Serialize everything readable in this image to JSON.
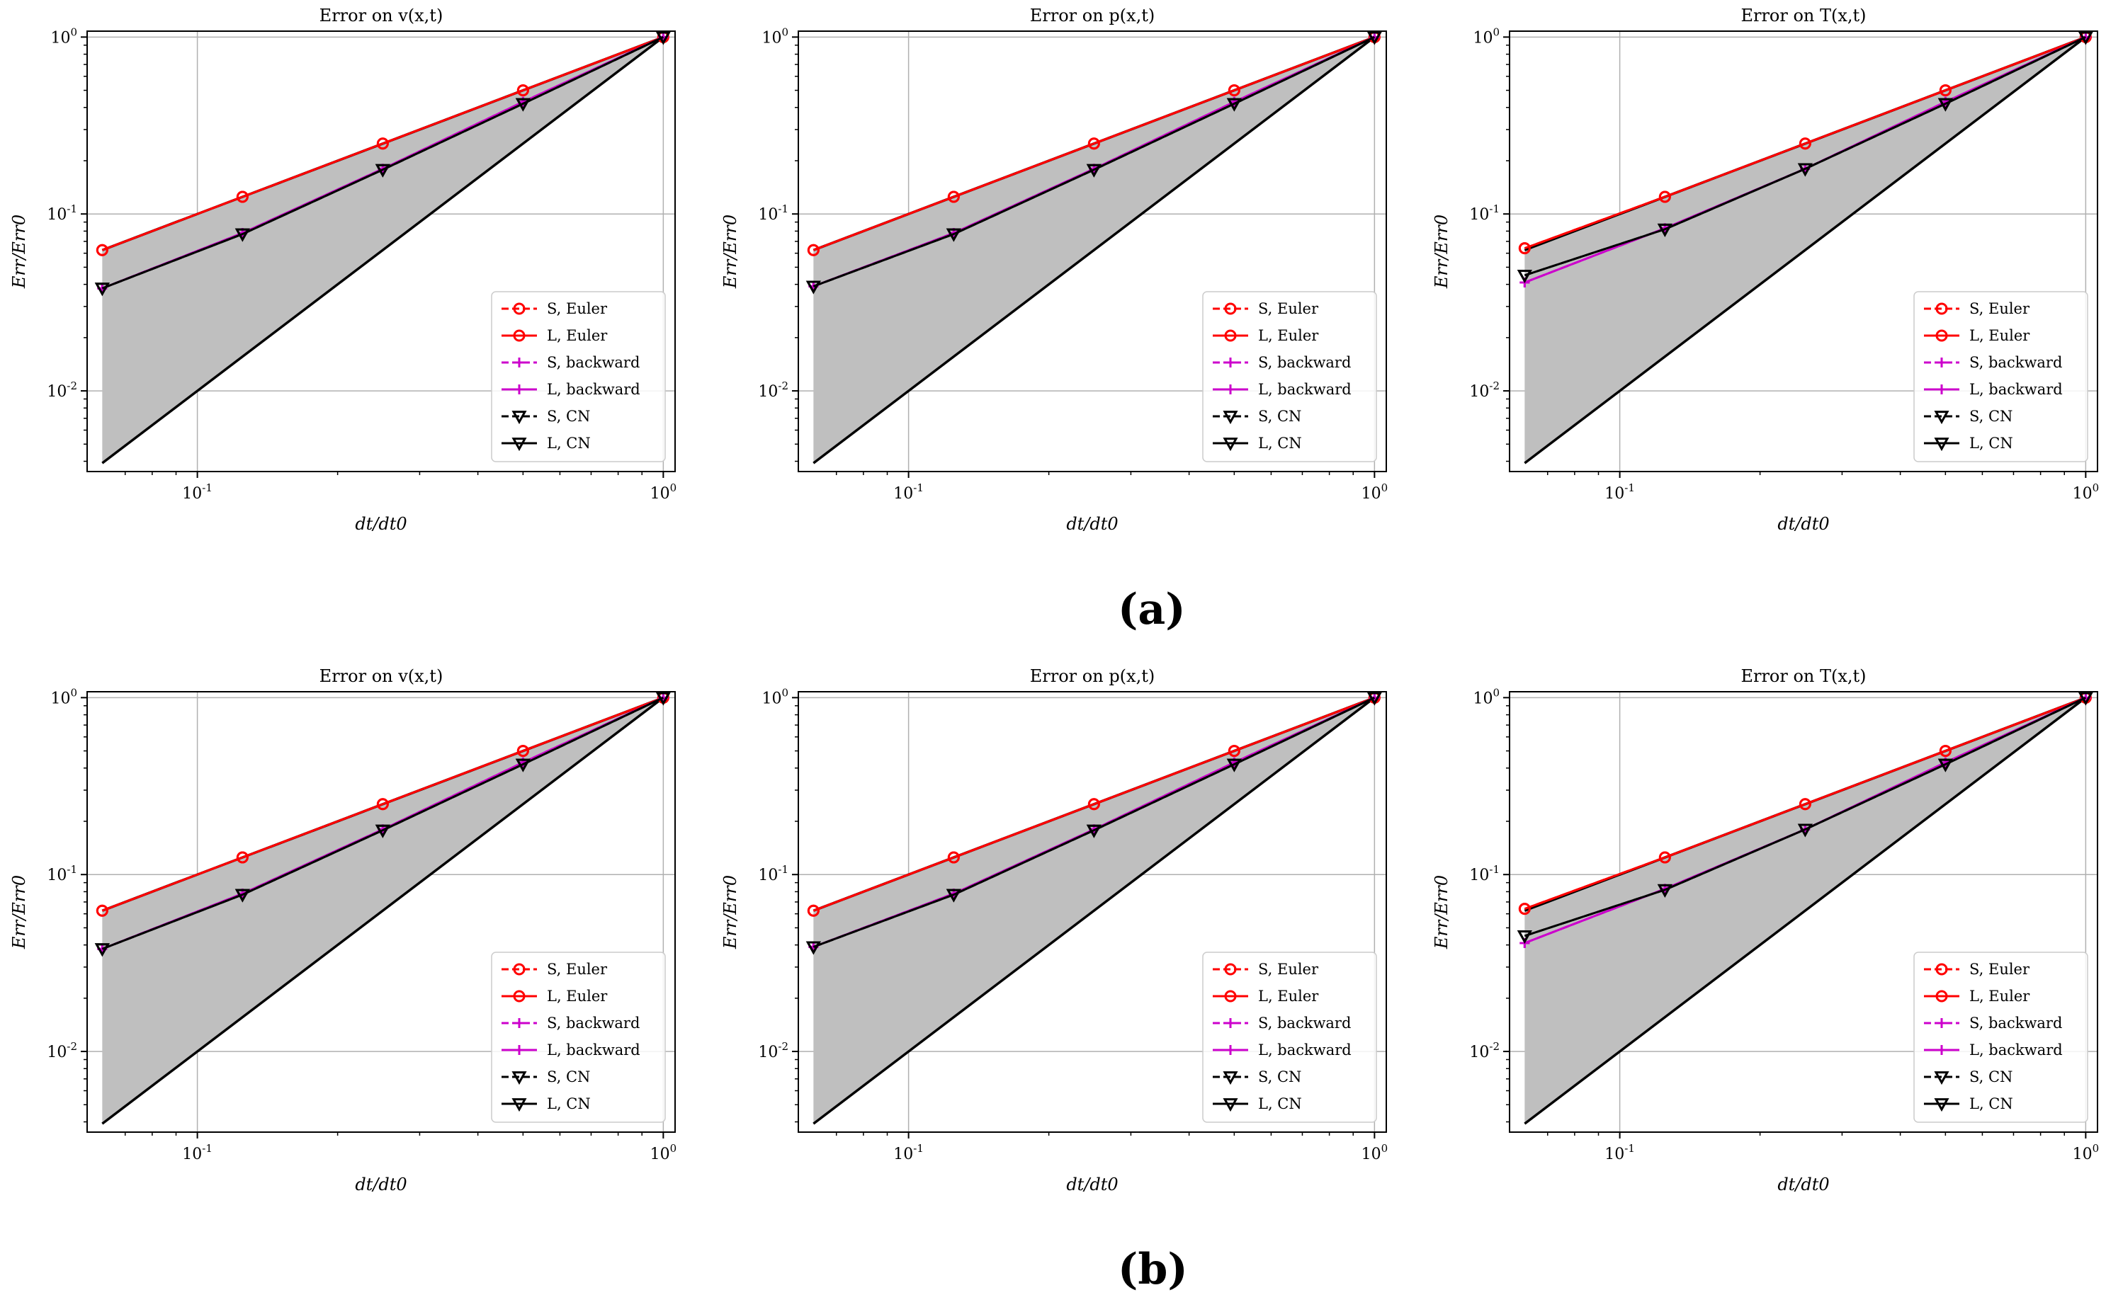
{
  "panel_labels": [
    "(a)",
    "(b)"
  ],
  "series_styles": {
    "S, Euler": {
      "color": "#ff0000",
      "dash": true,
      "marker": "circle"
    },
    "L, Euler": {
      "color": "#ff0000",
      "dash": false,
      "marker": "circle"
    },
    "S, backward": {
      "color": "#cc00cc",
      "dash": true,
      "marker": "plus"
    },
    "L, backward": {
      "color": "#cc00cc",
      "dash": false,
      "marker": "plus"
    },
    "S, CN": {
      "color": "#000000",
      "dash": true,
      "marker": "triangle-down"
    },
    "L, CN": {
      "color": "#000000",
      "dash": false,
      "marker": "triangle-down"
    }
  },
  "reference_band": {
    "fill": "#bfbfbf",
    "slopes": [
      1,
      2
    ]
  },
  "chart_data": [
    {
      "type": "line",
      "panel": "a",
      "title": "Error on v(x,t)",
      "xlabel": "dt/dt0",
      "ylabel": "Err/Err0",
      "xscale": "log",
      "yscale": "log",
      "xlim": [
        0.058,
        1.06
      ],
      "ylim": [
        0.0035,
        1.08
      ],
      "grid": true,
      "legend": "lower-right",
      "x": [
        0.0625,
        0.125,
        0.25,
        0.5,
        1.0
      ],
      "series": [
        {
          "name": "S, Euler",
          "values": [
            0.0625,
            0.125,
            0.25,
            0.5,
            1.0
          ]
        },
        {
          "name": "L, Euler",
          "values": [
            0.0625,
            0.125,
            0.25,
            0.5,
            1.0
          ]
        },
        {
          "name": "S, backward",
          "values": [
            0.038,
            0.078,
            0.18,
            0.43,
            1.0
          ]
        },
        {
          "name": "L, backward",
          "values": [
            0.038,
            0.078,
            0.18,
            0.43,
            1.0
          ]
        },
        {
          "name": "S, CN",
          "values": [
            0.038,
            0.077,
            0.178,
            0.42,
            1.0
          ]
        },
        {
          "name": "L, CN",
          "values": [
            0.038,
            0.077,
            0.178,
            0.42,
            1.0
          ]
        }
      ]
    },
    {
      "type": "line",
      "panel": "a",
      "title": "Error on p(x,t)",
      "xlabel": "dt/dt0",
      "ylabel": "Err/Err0",
      "xscale": "log",
      "yscale": "log",
      "xlim": [
        0.058,
        1.06
      ],
      "ylim": [
        0.0035,
        1.08
      ],
      "grid": true,
      "legend": "lower-right",
      "x": [
        0.0625,
        0.125,
        0.25,
        0.5,
        1.0
      ],
      "series": [
        {
          "name": "S, Euler",
          "values": [
            0.0625,
            0.125,
            0.25,
            0.5,
            1.0
          ]
        },
        {
          "name": "L, Euler",
          "values": [
            0.0625,
            0.125,
            0.25,
            0.5,
            1.0
          ]
        },
        {
          "name": "S, backward",
          "values": [
            0.039,
            0.078,
            0.18,
            0.43,
            1.0
          ]
        },
        {
          "name": "L, backward",
          "values": [
            0.039,
            0.078,
            0.18,
            0.43,
            1.0
          ]
        },
        {
          "name": "S, CN",
          "values": [
            0.039,
            0.077,
            0.178,
            0.42,
            1.0
          ]
        },
        {
          "name": "L, CN",
          "values": [
            0.039,
            0.077,
            0.178,
            0.42,
            1.0
          ]
        }
      ]
    },
    {
      "type": "line",
      "panel": "a",
      "title": "Error on T(x,t)",
      "xlabel": "dt/dt0",
      "ylabel": "Err/Err0",
      "xscale": "log",
      "yscale": "log",
      "xlim": [
        0.058,
        1.06
      ],
      "ylim": [
        0.0035,
        1.08
      ],
      "grid": true,
      "legend": "lower-right",
      "x": [
        0.0625,
        0.125,
        0.25,
        0.5,
        1.0
      ],
      "series": [
        {
          "name": "S, Euler",
          "values": [
            0.064,
            0.125,
            0.25,
            0.5,
            1.0
          ]
        },
        {
          "name": "L, Euler",
          "values": [
            0.064,
            0.125,
            0.25,
            0.5,
            1.0
          ]
        },
        {
          "name": "S, backward",
          "values": [
            0.041,
            0.083,
            0.18,
            0.43,
            1.0
          ]
        },
        {
          "name": "L, backward",
          "values": [
            0.041,
            0.083,
            0.18,
            0.43,
            1.0
          ]
        },
        {
          "name": "S, CN",
          "values": [
            0.045,
            0.082,
            0.18,
            0.42,
            1.0
          ]
        },
        {
          "name": "L, CN",
          "values": [
            0.045,
            0.082,
            0.18,
            0.42,
            1.0
          ]
        }
      ]
    },
    {
      "type": "line",
      "panel": "b",
      "title": "Error on v(x,t)",
      "xlabel": "dt/dt0",
      "ylabel": "Err/Err0",
      "xscale": "log",
      "yscale": "log",
      "xlim": [
        0.058,
        1.06
      ],
      "ylim": [
        0.0035,
        1.08
      ],
      "grid": true,
      "legend": "lower-right",
      "x": [
        0.0625,
        0.125,
        0.25,
        0.5,
        1.0
      ],
      "series": [
        {
          "name": "S, Euler",
          "values": [
            0.0625,
            0.125,
            0.25,
            0.5,
            1.0
          ]
        },
        {
          "name": "L, Euler",
          "values": [
            0.0625,
            0.125,
            0.25,
            0.5,
            1.0
          ]
        },
        {
          "name": "S, backward",
          "values": [
            0.038,
            0.078,
            0.18,
            0.43,
            1.0
          ]
        },
        {
          "name": "L, backward",
          "values": [
            0.038,
            0.078,
            0.18,
            0.43,
            1.0
          ]
        },
        {
          "name": "S, CN",
          "values": [
            0.038,
            0.077,
            0.178,
            0.42,
            1.0
          ]
        },
        {
          "name": "L, CN",
          "values": [
            0.038,
            0.077,
            0.178,
            0.42,
            1.0
          ]
        }
      ]
    },
    {
      "type": "line",
      "panel": "b",
      "title": "Error on p(x,t)",
      "xlabel": "dt/dt0",
      "ylabel": "Err/Err0",
      "xscale": "log",
      "yscale": "log",
      "xlim": [
        0.058,
        1.06
      ],
      "ylim": [
        0.0035,
        1.08
      ],
      "grid": true,
      "legend": "lower-right",
      "x": [
        0.0625,
        0.125,
        0.25,
        0.5,
        1.0
      ],
      "series": [
        {
          "name": "S, Euler",
          "values": [
            0.0625,
            0.125,
            0.25,
            0.5,
            1.0
          ]
        },
        {
          "name": "L, Euler",
          "values": [
            0.0625,
            0.125,
            0.25,
            0.5,
            1.0
          ]
        },
        {
          "name": "S, backward",
          "values": [
            0.039,
            0.078,
            0.18,
            0.43,
            1.0
          ]
        },
        {
          "name": "L, backward",
          "values": [
            0.039,
            0.078,
            0.18,
            0.43,
            1.0
          ]
        },
        {
          "name": "S, CN",
          "values": [
            0.039,
            0.077,
            0.178,
            0.42,
            1.0
          ]
        },
        {
          "name": "L, CN",
          "values": [
            0.039,
            0.077,
            0.178,
            0.42,
            1.0
          ]
        }
      ]
    },
    {
      "type": "line",
      "panel": "b",
      "title": "Error on T(x,t)",
      "xlabel": "dt/dt0",
      "ylabel": "Err/Err0",
      "xscale": "log",
      "yscale": "log",
      "xlim": [
        0.058,
        1.06
      ],
      "ylim": [
        0.0035,
        1.08
      ],
      "grid": true,
      "legend": "lower-right",
      "x": [
        0.0625,
        0.125,
        0.25,
        0.5,
        1.0
      ],
      "series": [
        {
          "name": "S, Euler",
          "values": [
            0.064,
            0.125,
            0.25,
            0.5,
            1.0
          ]
        },
        {
          "name": "L, Euler",
          "values": [
            0.064,
            0.125,
            0.25,
            0.5,
            1.0
          ]
        },
        {
          "name": "S, backward",
          "values": [
            0.041,
            0.083,
            0.18,
            0.43,
            1.0
          ]
        },
        {
          "name": "L, backward",
          "values": [
            0.041,
            0.083,
            0.18,
            0.43,
            1.0
          ]
        },
        {
          "name": "S, CN",
          "values": [
            0.045,
            0.082,
            0.18,
            0.42,
            1.0
          ]
        },
        {
          "name": "L, CN",
          "values": [
            0.045,
            0.082,
            0.18,
            0.42,
            1.0
          ]
        }
      ]
    }
  ]
}
